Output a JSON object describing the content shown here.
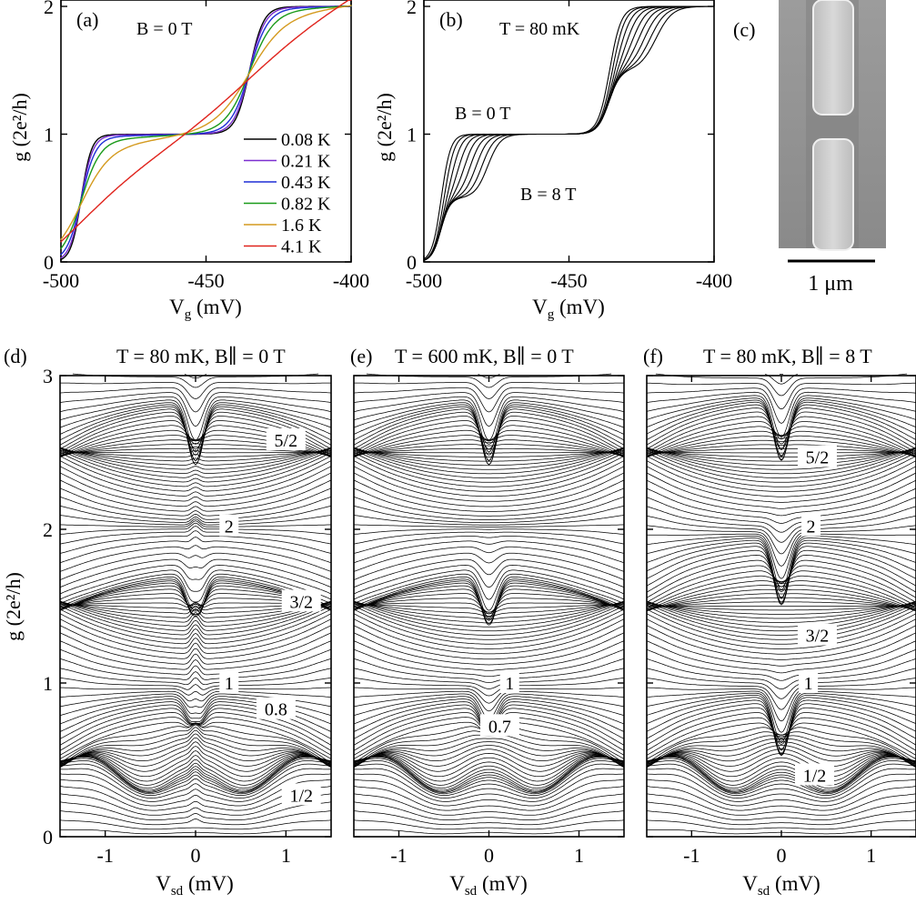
{
  "panels": {
    "a": {
      "tag": "(a)",
      "annot": "B = 0 T"
    },
    "b": {
      "tag": "(b)",
      "annot_t": "T = 80 mK",
      "annot_b0": "B = 0 T",
      "annot_b8": "B = 8 T"
    },
    "c": {
      "tag": "(c)",
      "scale": "1 μm"
    },
    "d": {
      "tag": "(d)",
      "title": "T = 80 mK, B∥ = 0 T"
    },
    "e": {
      "tag": "(e)",
      "title": "T = 600 mK, B∥ = 0 T"
    },
    "f": {
      "tag": "(f)",
      "title": "T = 80 mK, B∥ = 8 T"
    }
  },
  "chart_data": [
    {
      "id": "a",
      "type": "line",
      "xlabel_main": "V",
      "xlabel_sub": "g",
      "xlabel_unit": " (mV)",
      "ylabel": "g (2e²/h)",
      "xlim": [
        -500,
        -400
      ],
      "ylim": [
        0,
        2.05
      ],
      "xticks": [
        -500,
        -450,
        -400
      ],
      "yticks": [
        0,
        1,
        2
      ],
      "legend_placement": "lower-right",
      "series": [
        {
          "name": "0.08 K",
          "color": "#000000",
          "temperature": 0.08
        },
        {
          "name": "0.21 K",
          "color": "#7b2fd0",
          "temperature": 0.21
        },
        {
          "name": "0.43 K",
          "color": "#1f2fd6",
          "temperature": 0.43
        },
        {
          "name": "0.82 K",
          "color": "#1a9a1a",
          "temperature": 0.82
        },
        {
          "name": "1.6 K",
          "color": "#d49a1e",
          "temperature": 1.6
        },
        {
          "name": "4.1 K",
          "color": "#e0231c",
          "temperature": 4.1
        }
      ],
      "step_positions_mV": [
        -493,
        -435
      ],
      "crossing": {
        "x": -435,
        "y": 1.5
      }
    },
    {
      "id": "b",
      "type": "line",
      "xlabel_main": "V",
      "xlabel_sub": "g",
      "xlabel_unit": " (mV)",
      "ylabel": "g (2e²/h)",
      "xlim": [
        -500,
        -400
      ],
      "ylim": [
        0,
        2.05
      ],
      "xticks": [
        -500,
        -450,
        -400
      ],
      "yticks": [
        0,
        1,
        2
      ],
      "field_range_T": [
        0,
        8
      ],
      "curve_count": 9,
      "step_positions_B0_mV": [
        -494,
        -436
      ],
      "step_positions_B8_mV": [
        -494,
        -478,
        -436,
        -420
      ]
    },
    {
      "id": "d",
      "type": "line",
      "xlabel_main": "V",
      "xlabel_sub": "sd",
      "xlabel_unit": " (mV)",
      "ylabel": "g (2e²/h)",
      "xlim": [
        -1.5,
        1.5
      ],
      "ylim": [
        0,
        3
      ],
      "xticks": [
        -1,
        0,
        1
      ],
      "yticks": [
        0,
        1,
        2,
        3
      ],
      "plateau_labels": [
        {
          "text": "5/2",
          "x": 1.0,
          "y": 2.58
        },
        {
          "text": "2",
          "x": 0.37,
          "y": 2.02
        },
        {
          "text": "3/2",
          "x": 1.17,
          "y": 1.53
        },
        {
          "text": "1",
          "x": 0.37,
          "y": 1.0
        },
        {
          "text": "0.8",
          "x": 0.89,
          "y": 0.83
        },
        {
          "text": "1/2",
          "x": 1.17,
          "y": 0.27
        }
      ],
      "clusters": [
        {
          "g": 0.33,
          "dip": 0.0,
          "edge": 1.5
        },
        {
          "g": 0.86,
          "dip": 0.2,
          "edge": 2.0
        },
        {
          "g": 1.0,
          "dip": 0.0,
          "edge": 2.0
        },
        {
          "g": 1.68,
          "dip": 0.3,
          "edge": 2.4
        },
        {
          "g": 2.02,
          "dip": 0.0,
          "edge": 2.5
        },
        {
          "g": 2.82,
          "dip": 0.4,
          "edge": 3.0
        }
      ],
      "zero_bias_peak": 0.2
    },
    {
      "id": "e",
      "type": "line",
      "xlabel_main": "V",
      "xlabel_sub": "sd",
      "xlabel_unit": " (mV)",
      "ylabel": "",
      "xlim": [
        -1.5,
        1.5
      ],
      "ylim": [
        0,
        3
      ],
      "xticks": [
        -1,
        0,
        1
      ],
      "yticks": [
        0,
        1,
        2,
        3
      ],
      "plateau_labels": [
        {
          "text": "1",
          "x": 0.23,
          "y": 1.0
        },
        {
          "text": "0.7",
          "x": 0.12,
          "y": 0.72
        }
      ],
      "clusters": [
        {
          "g": 0.33,
          "dip": 0.0,
          "edge": 1.4
        },
        {
          "g": 0.86,
          "dip": 0.22,
          "edge": 2.0
        },
        {
          "g": 1.0,
          "dip": 0.0,
          "edge": 2.0
        },
        {
          "g": 1.68,
          "dip": 0.3,
          "edge": 2.4
        },
        {
          "g": 2.02,
          "dip": 0.0,
          "edge": 2.5
        },
        {
          "g": 2.82,
          "dip": 0.4,
          "edge": 3.0
        }
      ],
      "zero_bias_peak": 0.0
    },
    {
      "id": "f",
      "type": "line",
      "xlabel_main": "V",
      "xlabel_sub": "sd",
      "xlabel_unit": " (mV)",
      "ylabel": "",
      "xlim": [
        -1.5,
        1.5
      ],
      "ylim": [
        0,
        3
      ],
      "xticks": [
        -1,
        0,
        1
      ],
      "yticks": [
        0,
        1,
        2,
        3
      ],
      "plateau_labels": [
        {
          "text": "5/2",
          "x": 0.4,
          "y": 2.47
        },
        {
          "text": "2",
          "x": 0.33,
          "y": 2.02
        },
        {
          "text": "3/2",
          "x": 0.4,
          "y": 1.31
        },
        {
          "text": "1",
          "x": 0.3,
          "y": 1.0
        },
        {
          "text": "1/2",
          "x": 0.37,
          "y": 0.4
        }
      ],
      "clusters": [
        {
          "g": 0.33,
          "dip": 0.0,
          "edge": 1.4
        },
        {
          "g": 0.88,
          "dip": 0.38,
          "edge": 2.0
        },
        {
          "g": 1.0,
          "dip": 0.0,
          "edge": 2.0
        },
        {
          "g": 1.9,
          "dip": 0.42,
          "edge": 2.4
        },
        {
          "g": 2.02,
          "dip": 0.0,
          "edge": 2.5
        },
        {
          "g": 2.85,
          "dip": 0.4,
          "edge": 3.0
        }
      ],
      "zero_bias_peak": 0.0
    }
  ]
}
